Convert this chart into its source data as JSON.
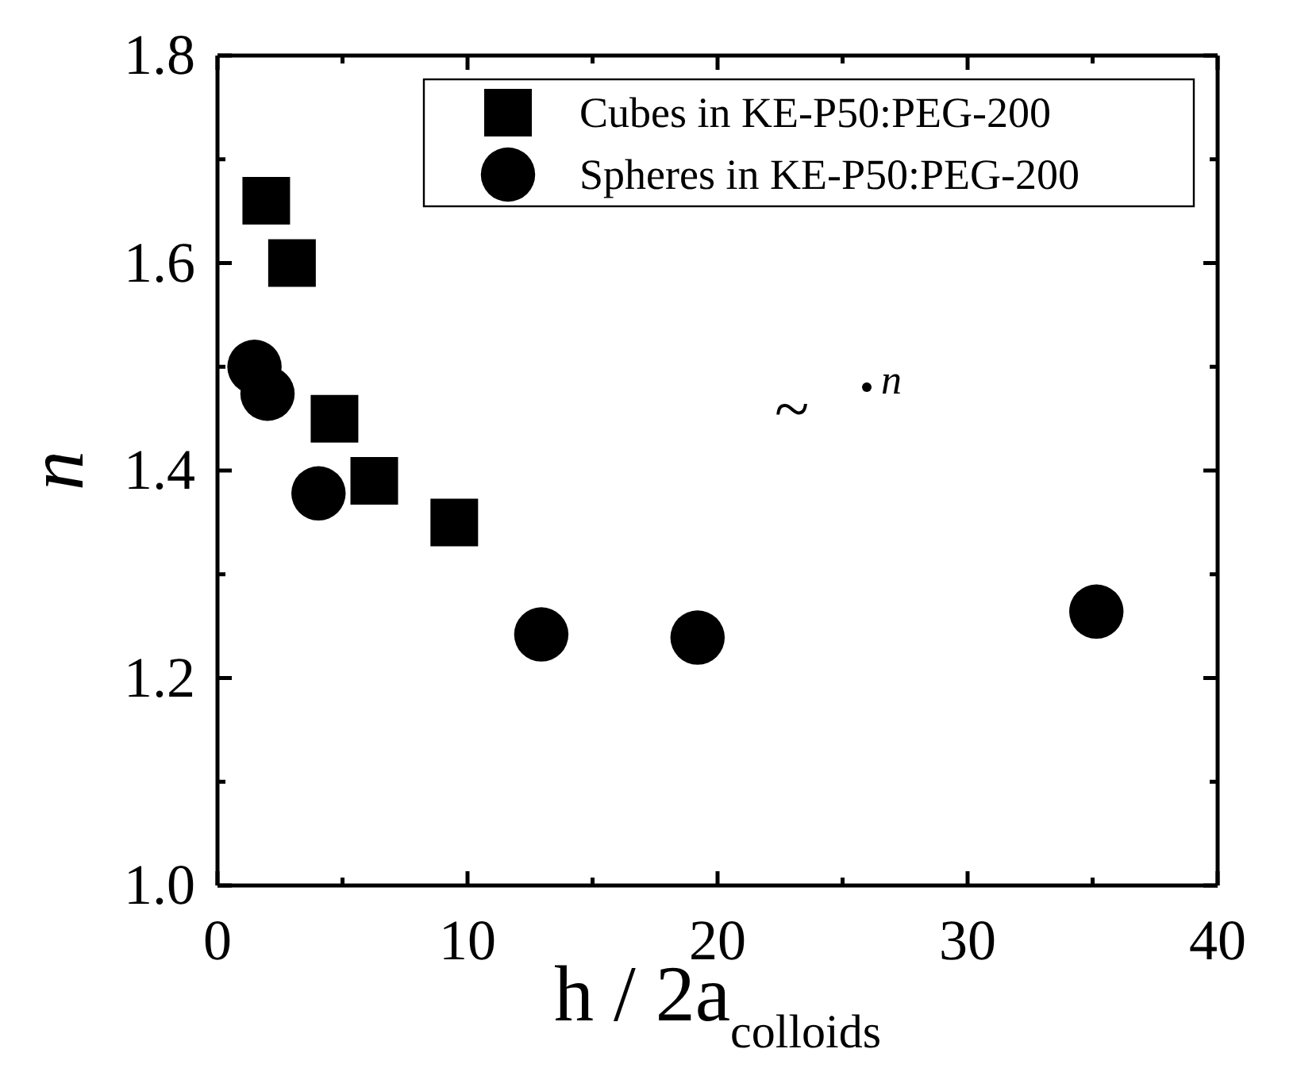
{
  "chart_data": {
    "type": "scatter",
    "xlabel": "h / 2a$_{colloids}$",
    "ylabel": "n",
    "xlim": [
      0,
      40
    ],
    "xticks": [
      0,
      {
        "value": 5,
        "label": null
      },
      10,
      {
        "value": 15,
        "label": null
      },
      20,
      {
        "value": 25,
        "label": null
      },
      30,
      {
        "value": 35,
        "label": null
      },
      40
    ],
    "ylim": [
      1.0,
      1.8
    ],
    "yticks": [
      {
        "value": 1.0,
        "label": "1.0"
      },
      {
        "value": 1.1,
        "label": null
      },
      1.2,
      {
        "value": 1.3,
        "label": null
      },
      1.4,
      {
        "value": 1.5,
        "label": null
      },
      1.6,
      {
        "value": 1.7,
        "label": null
      },
      1.8
    ],
    "grid": false,
    "legend": "top right",
    "series": [
      {
        "name": "Cubes in KE-P50:PEG-200",
        "color": "#000000",
        "marker": "square",
        "x": [
          1.95,
          2.98,
          4.68,
          6.27,
          9.47
        ],
        "values": [
          1.66,
          1.6,
          1.45,
          1.39,
          1.35
        ]
      },
      {
        "name": "Spheres in KE-P50:PEG-200",
        "color": "#000000",
        "marker": "circle",
        "x": [
          1.48,
          2.0,
          4.04,
          12.95,
          19.2,
          35.15
        ],
        "values": [
          1.5,
          1.474,
          1.378,
          1.242,
          1.239,
          1.264
        ]
      }
    ],
    "annotations": [
      "~",
      "n"
    ]
  }
}
